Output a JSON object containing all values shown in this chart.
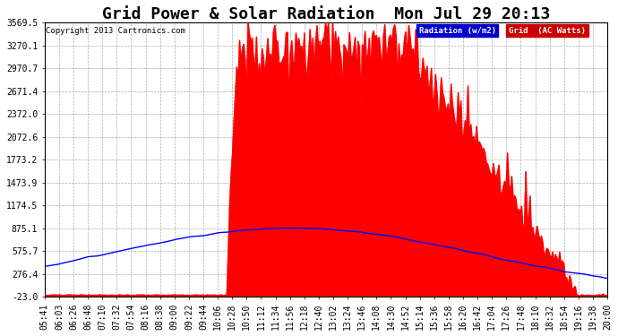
{
  "title": "Grid Power & Solar Radiation  Mon Jul 29 20:13",
  "copyright": "Copyright 2013 Cartronics.com",
  "legend_labels": [
    "Radiation (w/m2)",
    "Grid  (AC Watts)"
  ],
  "legend_colors": [
    "#0000ff",
    "#ff0000"
  ],
  "legend_bg_blue": "#0000cc",
  "legend_bg_red": "#cc0000",
  "ylim": [
    -23.0,
    3569.5
  ],
  "yticks": [
    3569.5,
    3270.1,
    2970.7,
    2671.4,
    2372.0,
    2072.6,
    1773.2,
    1473.9,
    1174.5,
    875.1,
    575.7,
    276.4,
    -23.0
  ],
  "bg_color": "#ffffff",
  "plot_bg_color": "#ffffff",
  "grid_color": "#999999",
  "radiation_color": "#0000ff",
  "grid_power_color": "#ff0000",
  "grid_power_fill": "#ff0000",
  "title_fontsize": 13,
  "tick_fontsize": 7,
  "x_labels": [
    "05:41",
    "06:03",
    "06:26",
    "06:48",
    "07:10",
    "07:32",
    "07:54",
    "08:16",
    "08:38",
    "09:00",
    "09:22",
    "09:44",
    "10:06",
    "10:28",
    "10:50",
    "11:12",
    "11:34",
    "11:56",
    "12:18",
    "12:40",
    "13:02",
    "13:24",
    "13:46",
    "14:08",
    "14:30",
    "14:52",
    "15:14",
    "15:36",
    "15:58",
    "16:20",
    "16:42",
    "17:04",
    "17:26",
    "17:48",
    "18:10",
    "18:32",
    "18:54",
    "19:16",
    "19:38",
    "20:00"
  ]
}
